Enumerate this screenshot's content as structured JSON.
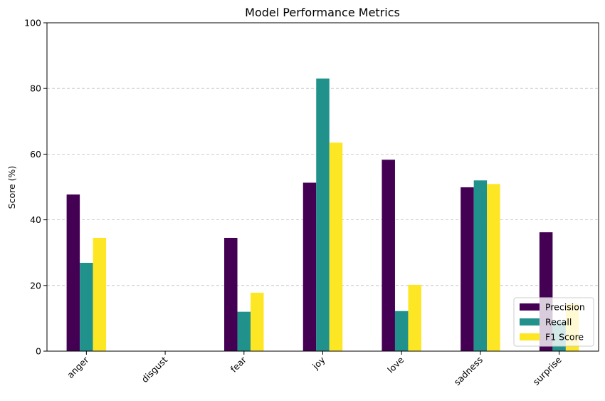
{
  "chart_data": {
    "type": "bar",
    "title": "Model Performance Metrics",
    "xlabel": "",
    "ylabel": "Score (%)",
    "ylim": [
      0,
      100
    ],
    "yticks": [
      0,
      20,
      40,
      60,
      80,
      100
    ],
    "grid": "y-dashed",
    "legend_position": "lower-right",
    "categories": [
      "anger",
      "disgust",
      "fear",
      "joy",
      "love",
      "sadness",
      "surprise"
    ],
    "series": [
      {
        "name": "Precision",
        "color": "#440154",
        "values": [
          47.7,
          0,
          34.5,
          51.3,
          58.3,
          49.9,
          36.2
        ]
      },
      {
        "name": "Recall",
        "color": "#21918c",
        "values": [
          26.9,
          0,
          12.0,
          83.0,
          12.2,
          52.0,
          9.0
        ]
      },
      {
        "name": "F1 Score",
        "color": "#fde725",
        "values": [
          34.5,
          0,
          17.8,
          63.5,
          20.2,
          50.9,
          14.5
        ]
      }
    ]
  }
}
